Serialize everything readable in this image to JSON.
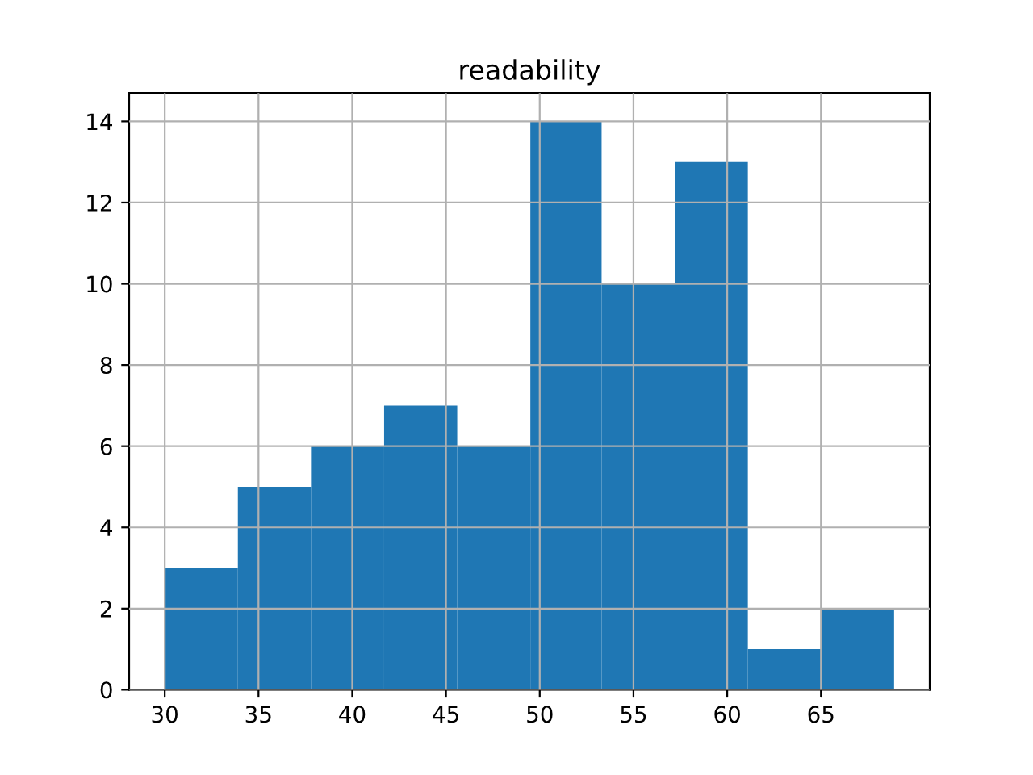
{
  "chart_data": {
    "type": "histogram",
    "title": "readability",
    "bins": [
      30,
      33.9,
      37.8,
      41.7,
      45.6,
      49.5,
      53.3,
      57.2,
      61.1,
      65.0,
      68.9
    ],
    "values": [
      3,
      5,
      6,
      7,
      6,
      14,
      10,
      13,
      1,
      2
    ],
    "color": "#1f77b4",
    "xlim": [
      28.1,
      70.8
    ],
    "xticks": [
      30,
      35,
      40,
      45,
      50,
      55,
      60,
      65
    ],
    "ylim": [
      0,
      14.7
    ],
    "yticks": [
      0,
      2,
      4,
      6,
      8,
      10,
      12,
      14
    ],
    "grid": true
  }
}
